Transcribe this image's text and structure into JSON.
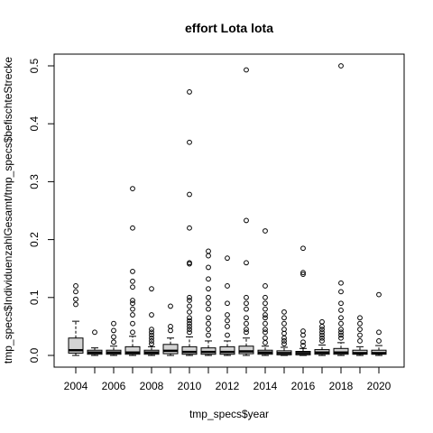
{
  "chart_data": {
    "type": "box",
    "title": "effort Lota lota",
    "xlabel": "tmp_specs$year",
    "ylabel": "tmp_specs$IndividuenzahlGesamt/tmp_specs$befischteStrecke",
    "ylim": [
      0,
      0.5
    ],
    "yticks": [
      "0.0",
      "0.1",
      "0.2",
      "0.3",
      "0.4",
      "0.5"
    ],
    "xtick_labels": [
      "2004",
      "2006",
      "2008",
      "2010",
      "2012",
      "2014",
      "2016",
      "2018",
      "2020"
    ],
    "categories": [
      "2004",
      "2005",
      "2006",
      "2007",
      "2008",
      "2009",
      "2010",
      "2011",
      "2012",
      "2013",
      "2014",
      "2015",
      "2016",
      "2017",
      "2018",
      "2019",
      "2020"
    ],
    "boxes": [
      {
        "year": "2004",
        "min": 0,
        "q1": 0.004,
        "median": 0.009,
        "q3": 0.03,
        "max": 0.059,
        "outliers": [
          0.088,
          0.097,
          0.11,
          0.12
        ]
      },
      {
        "year": "2005",
        "min": 0,
        "q1": 0.002,
        "median": 0.005,
        "q3": 0.009,
        "max": 0.013,
        "outliers": [
          0.04
        ]
      },
      {
        "year": "2006",
        "min": 0,
        "q1": 0.002,
        "median": 0.005,
        "q3": 0.009,
        "max": 0.016,
        "outliers": [
          0.023,
          0.032,
          0.043,
          0.055
        ]
      },
      {
        "year": "2007",
        "min": 0,
        "q1": 0.002,
        "median": 0.005,
        "q3": 0.015,
        "max": 0.033,
        "outliers": [
          0.04,
          0.055,
          0.07,
          0.08,
          0.09,
          0.095,
          0.118,
          0.128,
          0.145,
          0.22,
          0.288
        ]
      },
      {
        "year": "2008",
        "min": 0,
        "q1": 0.002,
        "median": 0.005,
        "q3": 0.009,
        "max": 0.015,
        "outliers": [
          0.02,
          0.025,
          0.03,
          0.035,
          0.04,
          0.045,
          0.07,
          0.115
        ]
      },
      {
        "year": "2009",
        "min": 0,
        "q1": 0.003,
        "median": 0.008,
        "q3": 0.019,
        "max": 0.03,
        "outliers": [
          0.043,
          0.05,
          0.085
        ]
      },
      {
        "year": "2010",
        "min": 0,
        "q1": 0.002,
        "median": 0.006,
        "q3": 0.015,
        "max": 0.032,
        "outliers": [
          0.04,
          0.045,
          0.05,
          0.055,
          0.06,
          0.065,
          0.075,
          0.085,
          0.095,
          0.1,
          0.158,
          0.16,
          0.22,
          0.278,
          0.368,
          0.455
        ]
      },
      {
        "year": "2011",
        "min": 0,
        "q1": 0.002,
        "median": 0.006,
        "q3": 0.013,
        "max": 0.025,
        "outliers": [
          0.035,
          0.045,
          0.055,
          0.065,
          0.08,
          0.09,
          0.1,
          0.115,
          0.132,
          0.152,
          0.172,
          0.18
        ]
      },
      {
        "year": "2012",
        "min": 0,
        "q1": 0.002,
        "median": 0.006,
        "q3": 0.015,
        "max": 0.025,
        "outliers": [
          0.035,
          0.05,
          0.06,
          0.07,
          0.09,
          0.12,
          0.168
        ]
      },
      {
        "year": "2013",
        "min": 0,
        "q1": 0.003,
        "median": 0.007,
        "q3": 0.016,
        "max": 0.03,
        "outliers": [
          0.04,
          0.045,
          0.055,
          0.065,
          0.08,
          0.09,
          0.1,
          0.16,
          0.233,
          0.493
        ]
      },
      {
        "year": "2014",
        "min": 0,
        "q1": 0.002,
        "median": 0.005,
        "q3": 0.009,
        "max": 0.016,
        "outliers": [
          0.022,
          0.03,
          0.04,
          0.045,
          0.055,
          0.065,
          0.07,
          0.08,
          0.09,
          0.1,
          0.12,
          0.215
        ]
      },
      {
        "year": "2015",
        "min": 0,
        "q1": 0.001,
        "median": 0.004,
        "q3": 0.008,
        "max": 0.014,
        "outliers": [
          0.02,
          0.025,
          0.03,
          0.038,
          0.045,
          0.055,
          0.065,
          0.075
        ]
      },
      {
        "year": "2016",
        "min": 0,
        "q1": 0.001,
        "median": 0.004,
        "q3": 0.007,
        "max": 0.012,
        "outliers": [
          0.017,
          0.023,
          0.035,
          0.042,
          0.14,
          0.143,
          0.185
        ]
      },
      {
        "year": "2017",
        "min": 0,
        "q1": 0.002,
        "median": 0.005,
        "q3": 0.01,
        "max": 0.018,
        "outliers": [
          0.025,
          0.03,
          0.035,
          0.04,
          0.045,
          0.05,
          0.058
        ]
      },
      {
        "year": "2018",
        "min": 0,
        "q1": 0.002,
        "median": 0.005,
        "q3": 0.012,
        "max": 0.022,
        "outliers": [
          0.03,
          0.035,
          0.04,
          0.045,
          0.055,
          0.065,
          0.078,
          0.09,
          0.11,
          0.125,
          0.5
        ]
      },
      {
        "year": "2019",
        "min": 0,
        "q1": 0.002,
        "median": 0.004,
        "q3": 0.009,
        "max": 0.015,
        "outliers": [
          0.025,
          0.035,
          0.045,
          0.055,
          0.065
        ]
      },
      {
        "year": "2020",
        "min": 0,
        "q1": 0.002,
        "median": 0.004,
        "q3": 0.009,
        "max": 0.017,
        "outliers": [
          0.025,
          0.04,
          0.105
        ]
      }
    ]
  }
}
